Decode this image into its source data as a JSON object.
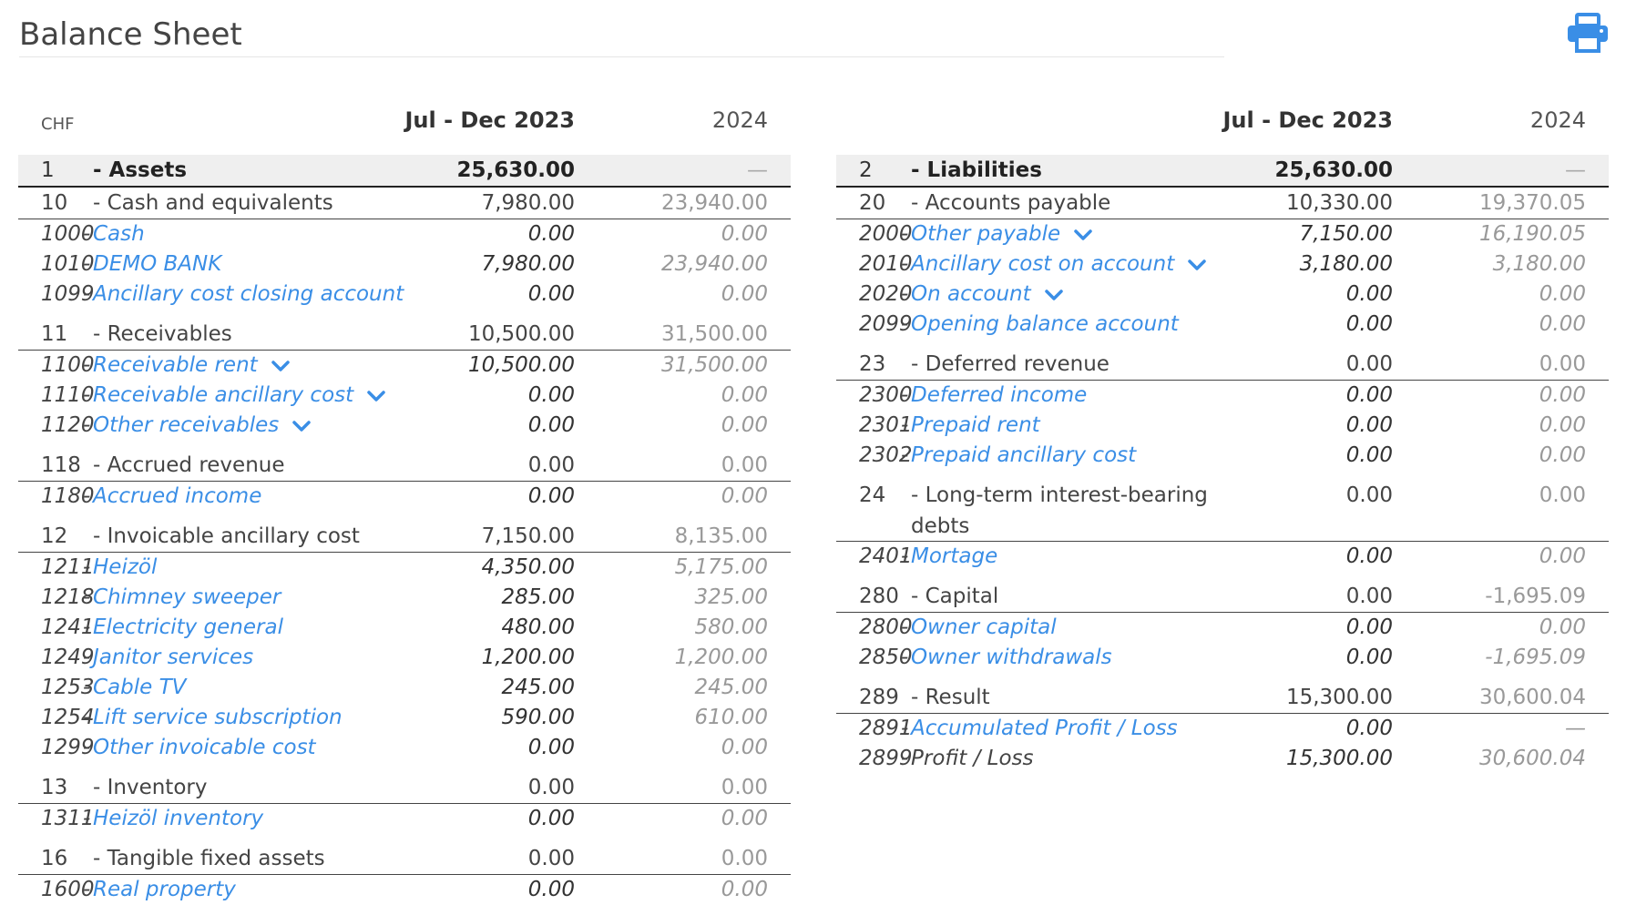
{
  "page": {
    "title": "Balance Sheet"
  },
  "toolbar": {
    "print_icon": "printer-icon"
  },
  "colors": {
    "accent": "#3a8ee6",
    "rule": "#222222",
    "group_bg": "#efefef"
  },
  "assets": {
    "currency": "CHF",
    "col1": "Jul - Dec 2023",
    "col2": "2024",
    "group": {
      "code": "1",
      "name": "- Assets",
      "v1": "25,630.00",
      "v2": "—"
    },
    "sections": [
      {
        "code": "10",
        "name": "- Cash and equivalents",
        "v1": "7,980.00",
        "v2": "23,940.00",
        "accounts": [
          {
            "code": "1000",
            "name": "Cash",
            "v1": "0.00",
            "v2": "0.00",
            "chev": false
          },
          {
            "code": "1010",
            "name": "DEMO BANK",
            "v1": "7,980.00",
            "v2": "23,940.00",
            "chev": false
          },
          {
            "code": "1099",
            "name": "Ancillary cost closing account",
            "v1": "0.00",
            "v2": "0.00",
            "chev": false
          }
        ]
      },
      {
        "code": "11",
        "name": "- Receivables",
        "v1": "10,500.00",
        "v2": "31,500.00",
        "accounts": [
          {
            "code": "1100",
            "name": "Receivable rent",
            "v1": "10,500.00",
            "v2": "31,500.00",
            "chev": true
          },
          {
            "code": "1110",
            "name": "Receivable ancillary cost",
            "v1": "0.00",
            "v2": "0.00",
            "chev": true
          },
          {
            "code": "1120",
            "name": "Other receivables",
            "v1": "0.00",
            "v2": "0.00",
            "chev": true
          }
        ]
      },
      {
        "code": "118",
        "name": "- Accrued revenue",
        "v1": "0.00",
        "v2": "0.00",
        "accounts": [
          {
            "code": "1180",
            "name": "Accrued income",
            "v1": "0.00",
            "v2": "0.00",
            "chev": false
          }
        ]
      },
      {
        "code": "12",
        "name": "- Invoicable ancillary cost",
        "v1": "7,150.00",
        "v2": "8,135.00",
        "accounts": [
          {
            "code": "1211",
            "name": "Heizöl",
            "v1": "4,350.00",
            "v2": "5,175.00",
            "chev": false
          },
          {
            "code": "1218",
            "name": "Chimney sweeper",
            "v1": "285.00",
            "v2": "325.00",
            "chev": false
          },
          {
            "code": "1241",
            "name": "Electricity general",
            "v1": "480.00",
            "v2": "580.00",
            "chev": false
          },
          {
            "code": "1249",
            "name": "Janitor services",
            "v1": "1,200.00",
            "v2": "1,200.00",
            "chev": false
          },
          {
            "code": "1253",
            "name": "Cable TV",
            "v1": "245.00",
            "v2": "245.00",
            "chev": false
          },
          {
            "code": "1254",
            "name": "Lift service subscription",
            "v1": "590.00",
            "v2": "610.00",
            "chev": false
          },
          {
            "code": "1299",
            "name": "Other invoicable cost",
            "v1": "0.00",
            "v2": "0.00",
            "chev": false
          }
        ]
      },
      {
        "code": "13",
        "name": "- Inventory",
        "v1": "0.00",
        "v2": "0.00",
        "accounts": [
          {
            "code": "1311",
            "name": "Heizöl inventory",
            "v1": "0.00",
            "v2": "0.00",
            "chev": false
          }
        ]
      },
      {
        "code": "16",
        "name": "- Tangible fixed assets",
        "v1": "0.00",
        "v2": "0.00",
        "accounts": [
          {
            "code": "1600",
            "name": "Real property",
            "v1": "0.00",
            "v2": "0.00",
            "chev": false
          }
        ]
      }
    ]
  },
  "liabilities": {
    "currency": "",
    "col1": "Jul - Dec 2023",
    "col2": "2024",
    "group": {
      "code": "2",
      "name": "- Liabilities",
      "v1": "25,630.00",
      "v2": "—"
    },
    "sections": [
      {
        "code": "20",
        "name": "- Accounts payable",
        "v1": "10,330.00",
        "v2": "19,370.05",
        "accounts": [
          {
            "code": "2000",
            "name": "Other payable",
            "v1": "7,150.00",
            "v2": "16,190.05",
            "chev": true
          },
          {
            "code": "2010",
            "name": "Ancillary cost on account",
            "v1": "3,180.00",
            "v2": "3,180.00",
            "chev": true
          },
          {
            "code": "2020",
            "name": "On account",
            "v1": "0.00",
            "v2": "0.00",
            "chev": true
          },
          {
            "code": "2099",
            "name": "Opening balance account",
            "v1": "0.00",
            "v2": "0.00",
            "chev": false
          }
        ]
      },
      {
        "code": "23",
        "name": "- Deferred revenue",
        "v1": "0.00",
        "v2": "0.00",
        "accounts": [
          {
            "code": "2300",
            "name": "Deferred income",
            "v1": "0.00",
            "v2": "0.00",
            "chev": false
          },
          {
            "code": "2301",
            "name": "Prepaid rent",
            "v1": "0.00",
            "v2": "0.00",
            "chev": false
          },
          {
            "code": "2302",
            "name": "Prepaid ancillary cost",
            "v1": "0.00",
            "v2": "0.00",
            "chev": false
          }
        ]
      },
      {
        "code": "24",
        "name": "- Long-term interest-bearing debts",
        "v1": "0.00",
        "v2": "0.00",
        "twoline": true,
        "accounts": [
          {
            "code": "2401",
            "name": "Mortage",
            "v1": "0.00",
            "v2": "0.00",
            "chev": false
          }
        ]
      },
      {
        "code": "280",
        "name": "- Capital",
        "v1": "0.00",
        "v2": "-1,695.09",
        "accounts": [
          {
            "code": "2800",
            "name": "Owner capital",
            "v1": "0.00",
            "v2": "0.00",
            "chev": false
          },
          {
            "code": "2850",
            "name": "Owner withdrawals",
            "v1": "0.00",
            "v2": "-1,695.09",
            "chev": false
          }
        ]
      },
      {
        "code": "289",
        "name": "- Result",
        "v1": "15,300.00",
        "v2": "30,600.04",
        "accounts": [
          {
            "code": "2891",
            "name": "Accumulated Profit / Loss",
            "v1": "0.00",
            "v2": "—",
            "chev": false
          },
          {
            "code": "2899",
            "name": "Profit / Loss",
            "v1": "15,300.00",
            "v2": "30,600.04",
            "chev": false,
            "plain": true
          }
        ]
      }
    ]
  }
}
